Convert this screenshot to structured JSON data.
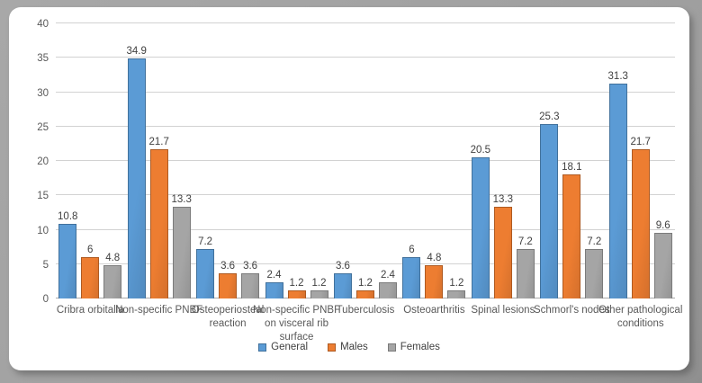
{
  "frame": {
    "background_color": "#a2a2a2",
    "card_color": "#ffffff"
  },
  "chart_data": {
    "type": "bar",
    "title": "",
    "xlabel": "",
    "ylabel": "",
    "ylim": [
      0,
      40
    ],
    "ytick_interval": 5,
    "yticks": [
      0,
      5,
      10,
      15,
      20,
      25,
      30,
      35,
      40
    ],
    "grid": true,
    "legend_position": "bottom",
    "categories": [
      "Cribra orbitalia",
      "Non-specific PNBF",
      "Osteoperiosteal reaction",
      "Non-specific PNBF on visceral rib surface",
      "Tuberculosis",
      "Osteoarthritis",
      "Spinal lesions",
      "Schmorl's nodes",
      "Other pathological conditions"
    ],
    "series": [
      {
        "name": "General",
        "fill_color": "#5B9BD5",
        "border_color": "#41719C",
        "values": [
          10.8,
          34.9,
          7.2,
          2.4,
          3.6,
          6,
          20.5,
          25.3,
          31.3
        ]
      },
      {
        "name": "Males",
        "fill_color": "#ED7D31",
        "border_color": "#AE5A21",
        "values": [
          6,
          21.7,
          3.6,
          1.2,
          1.2,
          4.8,
          13.3,
          18.1,
          21.7
        ]
      },
      {
        "name": "Females",
        "fill_color": "#A5A5A5",
        "border_color": "#7B7B7B",
        "values": [
          4.8,
          13.3,
          3.6,
          1.2,
          2.4,
          1.2,
          7.2,
          7.2,
          9.6
        ]
      }
    ]
  }
}
